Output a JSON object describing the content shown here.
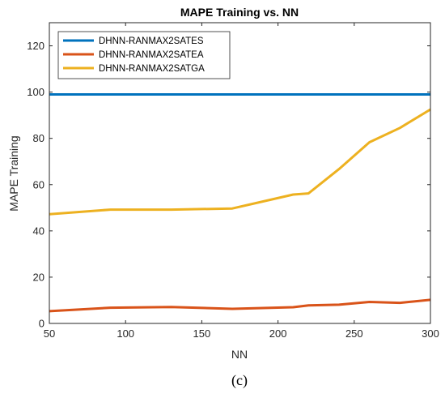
{
  "chart_data": {
    "type": "line",
    "title": "MAPE Training vs. NN",
    "xlabel": "NN",
    "ylabel": "MAPE Training",
    "xlim": [
      50,
      300
    ],
    "ylim": [
      0,
      130
    ],
    "xticks": [
      50,
      100,
      150,
      200,
      250,
      300
    ],
    "yticks": [
      0,
      20,
      40,
      60,
      80,
      100,
      120
    ],
    "grid": false,
    "legend_position": "top-left",
    "x": [
      50,
      90,
      130,
      170,
      210,
      220,
      240,
      260,
      280,
      300
    ],
    "series": [
      {
        "name": "DHNN-RANMAX2SATES",
        "color": "#0072BD",
        "values": [
          99,
          99,
          99,
          99,
          99,
          99,
          99,
          99,
          99,
          99
        ]
      },
      {
        "name": "DHNN-RANMAX2SATEA",
        "color": "#D95319",
        "values": [
          5.3,
          6.8,
          7.1,
          6.3,
          7.0,
          7.8,
          8.1,
          9.3,
          8.9,
          10.2
        ]
      },
      {
        "name": "DHNN-RANMAX2SATGA",
        "color": "#EDB120",
        "values": [
          47.2,
          49.2,
          49.2,
          49.7,
          55.7,
          56.2,
          66.7,
          78.3,
          84.5,
          92.5
        ]
      }
    ]
  },
  "caption": "(c)"
}
